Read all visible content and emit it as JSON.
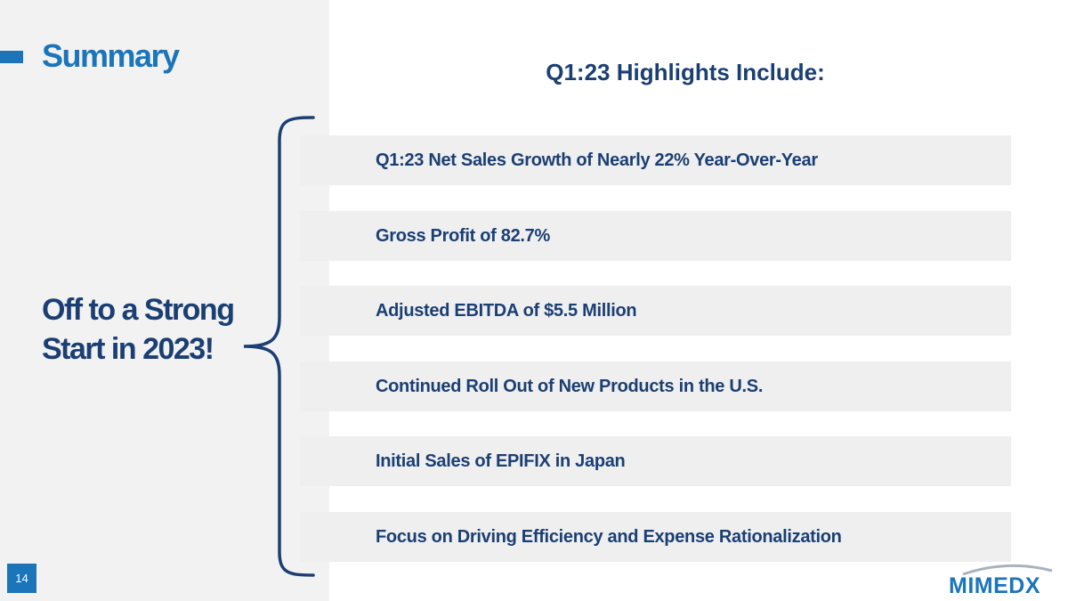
{
  "slide": {
    "title": "Summary",
    "tagline": "Off to a Strong Start in 2023!",
    "page_number": "14"
  },
  "highlights": {
    "heading": "Q1:23 Highlights Include:",
    "items": [
      "Q1:23 Net Sales Growth of Nearly 22% Year-Over-Year",
      "Gross Profit of 82.7%",
      "Adjusted EBITDA of $5.5 Million",
      "Continued Roll Out of New Products in the U.S.",
      "Initial Sales of EPIFIX in Japan",
      "Focus on Driving Efficiency and Expense Rationalization"
    ]
  },
  "brand": {
    "logo_text": "MIMEDX"
  },
  "colors": {
    "accent_blue": "#1a75bb",
    "navy": "#1b3f73",
    "panel_gray": "#f2f2f2",
    "row_gray": "#efefef"
  }
}
